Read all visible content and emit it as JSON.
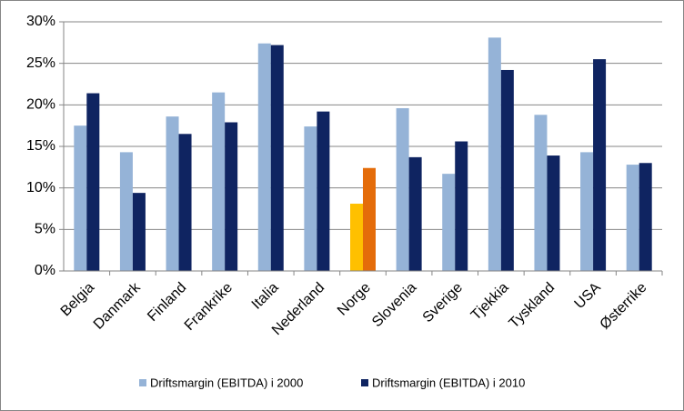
{
  "chart_data": {
    "type": "bar",
    "categories": [
      "Belgia",
      "Danmark",
      "Finland",
      "Frankrike",
      "Italia",
      "Nederland",
      "Norge",
      "Slovenia",
      "Sverige",
      "Tjekkia",
      "Tyskland",
      "USA",
      "Østerrike"
    ],
    "series": [
      {
        "name": "Driftsmargin (EBITDA) i 2000",
        "color": "#95b3d7",
        "colors": [
          "#95b3d7",
          "#95b3d7",
          "#95b3d7",
          "#95b3d7",
          "#95b3d7",
          "#95b3d7",
          "#ffc000",
          "#95b3d7",
          "#95b3d7",
          "#95b3d7",
          "#95b3d7",
          "#95b3d7",
          "#95b3d7"
        ],
        "values": [
          17.5,
          14.3,
          18.6,
          21.5,
          27.4,
          17.4,
          8.1,
          19.6,
          11.7,
          28.1,
          18.8,
          14.3,
          12.8
        ]
      },
      {
        "name": "Driftsmargin (EBITDA) i 2010",
        "color": "#0f2461",
        "colors": [
          "#0f2461",
          "#0f2461",
          "#0f2461",
          "#0f2461",
          "#0f2461",
          "#0f2461",
          "#e46c0a",
          "#0f2461",
          "#0f2461",
          "#0f2461",
          "#0f2461",
          "#0f2461",
          "#0f2461"
        ],
        "values": [
          21.4,
          9.4,
          16.5,
          17.9,
          27.2,
          19.2,
          12.4,
          13.7,
          15.6,
          24.2,
          13.9,
          25.5,
          13.0
        ]
      }
    ],
    "ylim": [
      0,
      30
    ],
    "yticks": [
      {
        "value": 0,
        "label": "0%"
      },
      {
        "value": 5,
        "label": "5%"
      },
      {
        "value": 10,
        "label": "10%"
      },
      {
        "value": 15,
        "label": "15%"
      },
      {
        "value": 20,
        "label": "20%"
      },
      {
        "value": 25,
        "label": "25%"
      },
      {
        "value": 30,
        "label": "30%"
      }
    ],
    "grid": true,
    "legend": "bottom"
  }
}
